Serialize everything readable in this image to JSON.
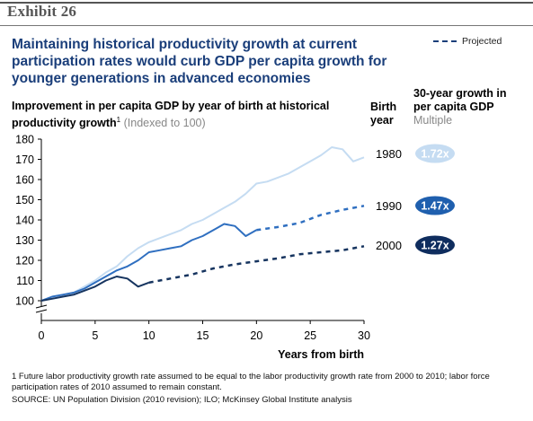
{
  "header": {
    "exhibit": "Exhibit 26",
    "title": "Maintaining historical productivity growth at current participation rates would curb GDP per capita growth for younger generations in advanced economies",
    "legend_projected": "Projected"
  },
  "chart_header": {
    "subtitle_main": "Improvement in per capita GDP by year of birth at historical productivity growth",
    "footnote_marker": "1",
    "subtitle_note": "(Indexed to 100)",
    "birth_year_label_1": "Birth",
    "birth_year_label_2": "year",
    "growth_label_1": "30-year growth in",
    "growth_label_2": "per capita GDP",
    "growth_unit": "Multiple"
  },
  "chart_data": {
    "type": "line",
    "xlabel": "Years from birth",
    "ylabel": "",
    "xlim": [
      0,
      30
    ],
    "ylim": [
      100,
      180
    ],
    "y_axis_break": true,
    "x_ticks": [
      0,
      5,
      10,
      15,
      20,
      25,
      30
    ],
    "y_ticks": [
      100,
      110,
      120,
      130,
      140,
      150,
      160,
      170,
      180
    ],
    "grid": false,
    "projected_style": "dashed",
    "series": [
      {
        "name": "1980",
        "color": "#c5dcf2",
        "actual": {
          "x": [
            0,
            1,
            2,
            3,
            4,
            5,
            6,
            7,
            8,
            9,
            10,
            11,
            12,
            13,
            14,
            15,
            16,
            17,
            18,
            19,
            20,
            21,
            22,
            23,
            24,
            25,
            26,
            27,
            28,
            29,
            30
          ],
          "y": [
            100,
            102,
            103,
            104,
            107,
            110,
            114,
            117,
            122,
            126,
            129,
            131,
            133,
            135,
            138,
            140,
            143,
            146,
            149,
            153,
            158,
            159,
            161,
            163,
            166,
            169,
            172,
            176,
            175,
            169,
            171
          ]
        },
        "projected": {
          "x": [],
          "y": []
        },
        "growth_multiple": "1.72x",
        "badge_color": "#c5dcf2"
      },
      {
        "name": "1990",
        "color": "#2f6fc0",
        "actual": {
          "x": [
            0,
            1,
            2,
            3,
            4,
            5,
            6,
            7,
            8,
            9,
            10,
            11,
            12,
            13,
            14,
            15,
            16,
            17,
            18,
            19,
            20
          ],
          "y": [
            100,
            102,
            103,
            104,
            106,
            109,
            112,
            115,
            117,
            120,
            124,
            125,
            126,
            127,
            130,
            132,
            135,
            138,
            137,
            132,
            135
          ]
        },
        "projected": {
          "x": [
            20,
            22,
            24,
            26,
            28,
            30
          ],
          "y": [
            135,
            136.5,
            138.5,
            142.5,
            145,
            147
          ]
        },
        "growth_multiple": "1.47x",
        "badge_color": "#1f5fae"
      },
      {
        "name": "2000",
        "color": "#16345f",
        "actual": {
          "x": [
            0,
            1,
            2,
            3,
            4,
            5,
            6,
            7,
            8,
            9,
            10
          ],
          "y": [
            100,
            101,
            102,
            103,
            105,
            107,
            110,
            112,
            111,
            107,
            109
          ]
        },
        "projected": {
          "x": [
            10,
            12,
            14,
            16,
            18,
            20,
            22,
            24,
            26,
            28,
            30
          ],
          "y": [
            109,
            111,
            113,
            116,
            118,
            119.5,
            121,
            123,
            124,
            125,
            127
          ]
        },
        "growth_multiple": "1.27x",
        "badge_color": "#0f2d5e"
      }
    ]
  },
  "footer": {
    "footnote": "1  Future labor productivity growth rate assumed to be equal to the labor productivity growth rate from 2000 to 2010; labor force participation rates of 2010 assumed to remain constant.",
    "source": "SOURCE: UN Population Division (2010 revision); ILO; McKinsey Global Institute analysis"
  }
}
